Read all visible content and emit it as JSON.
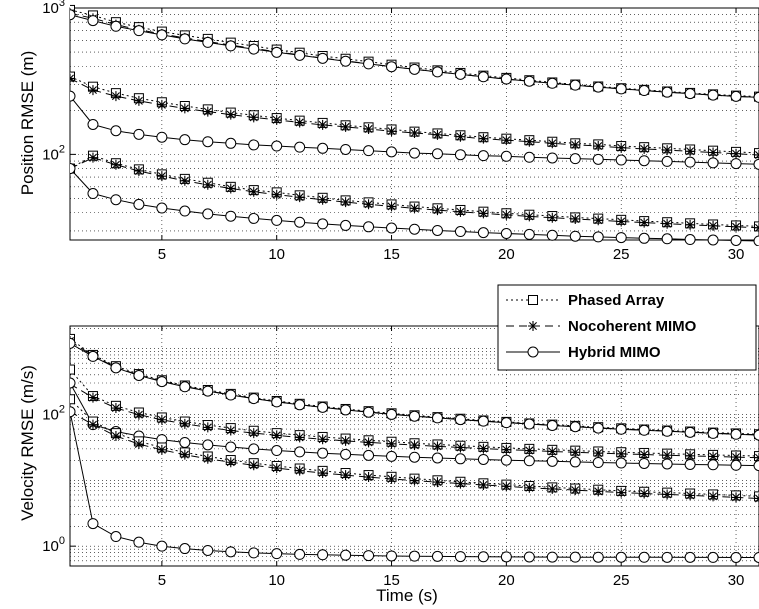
{
  "chart_data": [
    {
      "type": "line",
      "ylabel": "Position RMSE (m)",
      "xlabel": "",
      "yscale": "log",
      "xlim": [
        1,
        31
      ],
      "ylim": [
        26,
        1000
      ],
      "xticks": [
        5,
        10,
        15,
        20,
        25,
        30
      ],
      "yticks": [
        {
          "value": 100,
          "base": "10",
          "exp": "2"
        },
        {
          "value": 1000,
          "base": "10",
          "exp": "3"
        }
      ],
      "grid": true,
      "x": [
        1,
        2,
        3,
        4,
        5,
        6,
        7,
        8,
        9,
        10,
        11,
        12,
        13,
        14,
        15,
        16,
        17,
        18,
        19,
        20,
        21,
        22,
        23,
        24,
        25,
        26,
        27,
        28,
        29,
        30,
        31
      ],
      "groups": [
        {
          "series": [
            {
              "ref": 0,
              "values": [
                970,
                890,
                800,
                740,
                690,
                650,
                615,
                580,
                550,
                520,
                495,
                470,
                450,
                430,
                410,
                392,
                375,
                360,
                345,
                333,
                321,
                310,
                300,
                291,
                283,
                276,
                269,
                263,
                257,
                252,
                248
              ]
            },
            {
              "ref": 1,
              "values": [
                920,
                850,
                770,
                710,
                665,
                625,
                590,
                558,
                530,
                502,
                478,
                455,
                435,
                416,
                398,
                381,
                366,
                352,
                339,
                327,
                316,
                306,
                297,
                288,
                280,
                273,
                266,
                260,
                254,
                249,
                245
              ]
            },
            {
              "ref": 2,
              "values": [
                900,
                820,
                750,
                700,
                655,
                615,
                582,
                551,
                524,
                498,
                475,
                453,
                433,
                415,
                397,
                381,
                366,
                352,
                339,
                327,
                316,
                306,
                297,
                288,
                280,
                273,
                266,
                260,
                254,
                249,
                245
              ]
            }
          ]
        },
        {
          "series": [
            {
              "ref": 0,
              "values": [
                340,
                290,
                262,
                242,
                227,
                214,
                203,
                193,
                185,
                177,
                170,
                164,
                158,
                153,
                148,
                143,
                139,
                135,
                131,
                128,
                125,
                122,
                119,
                117,
                114,
                112,
                110,
                108,
                106,
                104,
                102
              ]
            },
            {
              "ref": 1,
              "values": [
                330,
                275,
                250,
                232,
                218,
                206,
                196,
                187,
                179,
                172,
                165,
                159,
                154,
                149,
                144,
                140,
                136,
                132,
                128,
                125,
                122,
                119,
                116,
                114,
                111,
                109,
                107,
                105,
                103,
                101,
                99
              ]
            },
            {
              "ref": 2,
              "values": [
                250,
                160,
                145,
                137,
                131,
                126,
                122,
                119,
                116,
                114,
                112,
                110,
                108,
                106,
                104,
                102,
                101,
                99.5,
                98,
                97,
                95.5,
                94.5,
                93.5,
                92.5,
                91.5,
                90.5,
                89.5,
                88.5,
                87.5,
                86.5,
                85.5
              ]
            }
          ]
        },
        {
          "series": [
            {
              "ref": 0,
              "values": [
                80,
                98,
                87,
                79,
                73,
                68,
                64,
                60,
                57,
                55,
                52.5,
                50.5,
                48.5,
                47,
                45.5,
                44,
                42.8,
                41.7,
                40.6,
                39.6,
                38.7,
                37.9,
                37.1,
                36.4,
                35.7,
                35,
                34.4,
                33.8,
                33.2,
                32.7,
                32.2
              ]
            },
            {
              "ref": 1,
              "values": [
                80,
                95,
                85,
                77,
                71,
                66,
                62,
                58.5,
                55.5,
                53,
                51,
                49,
                47.2,
                45.6,
                44.1,
                42.8,
                41.6,
                40.5,
                39.5,
                38.6,
                37.7,
                36.9,
                36.2,
                35.5,
                34.8,
                34.2,
                33.6,
                33,
                32.5,
                32,
                31.5
              ]
            },
            {
              "ref": 2,
              "values": [
                80,
                54,
                49,
                45.5,
                43,
                41,
                39.2,
                37.8,
                36.5,
                35.4,
                34.4,
                33.5,
                32.7,
                32,
                31.4,
                30.8,
                30.2,
                29.7,
                29.2,
                28.8,
                28.4,
                28,
                27.6,
                27.3,
                27,
                26.7,
                26.5,
                26.2,
                26,
                25.8,
                25.6
              ]
            }
          ]
        }
      ]
    },
    {
      "type": "line",
      "ylabel": "Velocity RMSE (m/s)",
      "xlabel": "Time (s)",
      "yscale": "log",
      "xlim": [
        1,
        31
      ],
      "ylim": [
        0.5,
        2200
      ],
      "xticks": [
        5,
        10,
        15,
        20,
        25,
        30
      ],
      "yticks": [
        {
          "value": 1,
          "base": "10",
          "exp": "0"
        },
        {
          "value": 100,
          "base": "10",
          "exp": "2"
        }
      ],
      "grid": true,
      "legend": {
        "position": "top-right",
        "entries": [
          "Phased Array",
          "Nocoherent MIMO",
          "Hybrid MIMO"
        ]
      },
      "x": [
        1,
        2,
        3,
        4,
        5,
        6,
        7,
        8,
        9,
        10,
        11,
        12,
        13,
        14,
        15,
        16,
        17,
        18,
        19,
        20,
        21,
        22,
        23,
        24,
        25,
        26,
        27,
        28,
        29,
        30,
        31
      ],
      "groups": [
        {
          "series": [
            {
              "ref": 0,
              "values": [
                1400,
                800,
                540,
                410,
                330,
                275,
                235,
                205,
                180,
                160,
                145,
                132,
                121,
                112,
                104,
                97,
                91,
                86,
                81,
                77,
                73,
                70,
                67,
                64,
                61.5,
                59,
                57,
                55,
                53,
                51.5,
                50
              ]
            },
            {
              "ref": 1,
              "values": [
                1300,
                780,
                520,
                395,
                320,
                266,
                228,
                198,
                175,
                156,
                141,
                128,
                118,
                109,
                101,
                94.5,
                89,
                84,
                79.5,
                75.5,
                72,
                68.5,
                65.5,
                62.5,
                60,
                58,
                56,
                54,
                52,
                50.5,
                49
              ]
            },
            {
              "ref": 2,
              "values": [
                1200,
                760,
                510,
                390,
                315,
                263,
                226,
                197,
                174,
                155,
                140,
                128,
                117,
                108,
                100,
                94,
                88.5,
                83.5,
                79,
                75,
                71.5,
                68,
                65,
                62,
                59.5,
                57.5,
                55.5,
                53.5,
                51.5,
                50,
                48.5
              ]
            }
          ]
        },
        {
          "series": [
            {
              "ref": 0,
              "values": [
                480,
                190,
                135,
                107,
                90,
                78,
                69,
                62,
                56.5,
                52,
                48.5,
                45.5,
                43,
                40.5,
                38.5,
                36.5,
                35,
                33.5,
                32.2,
                31,
                30,
                29,
                28.2,
                27.4,
                26.7,
                26,
                25.4,
                24.8,
                24.3,
                23.8,
                23.3
              ]
            },
            {
              "ref": 1,
              "values": [
                290,
                180,
                125,
                99,
                83,
                72,
                63.5,
                57,
                52,
                48,
                44.8,
                42,
                39.7,
                37.6,
                35.8,
                34.2,
                32.8,
                31.5,
                30.3,
                29.2,
                28.3,
                27.4,
                26.6,
                25.9,
                25.2,
                24.6,
                24,
                23.5,
                23,
                22.5,
                22
              ]
            },
            {
              "ref": 2,
              "values": [
                300,
                70,
                55,
                47,
                41.5,
                37.5,
                34.5,
                32,
                30,
                28.3,
                27,
                25.8,
                24.8,
                23.9,
                23.1,
                22.4,
                21.8,
                21.2,
                20.7,
                20.2,
                19.8,
                19.4,
                19,
                18.6,
                18.3,
                18,
                17.7,
                17.4,
                17.2,
                16.9,
                16.7
              ]
            }
          ]
        },
        {
          "series": [
            {
              "ref": 0,
              "values": [
                170,
                78,
                52,
                39,
                31.5,
                26.5,
                23,
                20.3,
                18.2,
                16.5,
                15.1,
                13.9,
                12.9,
                12,
                11.3,
                10.6,
                10,
                9.5,
                9,
                8.6,
                8.2,
                7.8,
                7.5,
                7.2,
                6.9,
                6.7,
                6.5,
                6.3,
                6.1,
                5.9,
                5.7
              ]
            },
            {
              "ref": 1,
              "values": [
                110,
                70,
                47,
                35.5,
                29,
                24.5,
                21.2,
                18.8,
                16.9,
                15.3,
                14,
                12.9,
                12,
                11.2,
                10.5,
                9.9,
                9.4,
                8.9,
                8.5,
                8.1,
                7.7,
                7.4,
                7.1,
                6.8,
                6.5,
                6.3,
                6.1,
                5.9,
                5.7,
                5.5,
                5.3
              ]
            },
            {
              "ref": 2,
              "values": [
                110,
                2.2,
                1.4,
                1.15,
                1.0,
                0.92,
                0.86,
                0.82,
                0.79,
                0.77,
                0.75,
                0.74,
                0.73,
                0.72,
                0.71,
                0.705,
                0.7,
                0.695,
                0.69,
                0.688,
                0.685,
                0.683,
                0.681,
                0.68,
                0.679,
                0.678,
                0.677,
                0.676,
                0.675,
                0.674,
                0.673
              ]
            }
          ]
        }
      ]
    }
  ],
  "styles": [
    {
      "name": "Phased Array",
      "dash": "2,3",
      "marker": "square",
      "color": "#000000"
    },
    {
      "name": "Nocoherent MIMO",
      "dash": "8,5",
      "marker": "star",
      "color": "#000000"
    },
    {
      "name": "Hybrid MIMO",
      "dash": "",
      "marker": "circle",
      "color": "#000000"
    }
  ]
}
